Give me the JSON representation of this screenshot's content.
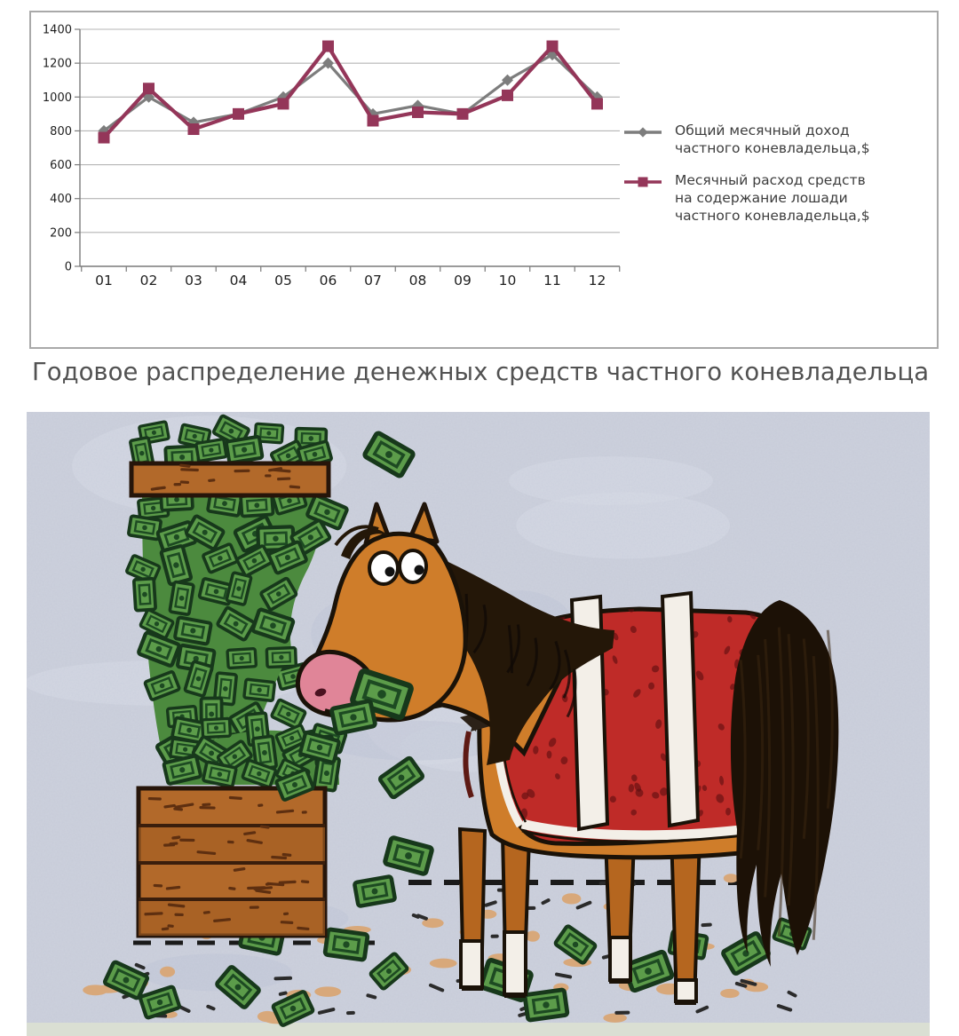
{
  "caption": "Годовое распределение денежных средств частного коневладельца",
  "chart_data": {
    "type": "line",
    "title": "",
    "categories": [
      "01",
      "02",
      "03",
      "04",
      "05",
      "06",
      "07",
      "08",
      "09",
      "10",
      "11",
      "12"
    ],
    "series": [
      {
        "name": "Общий месячный доход частного коневладельца,$",
        "color": "#7d7d7d",
        "marker": "diamond",
        "values": [
          800,
          1000,
          850,
          900,
          1000,
          1200,
          900,
          950,
          900,
          1100,
          1250,
          1000
        ]
      },
      {
        "name": "Месячный расход средств на содержание лошади частного коневладельца,$",
        "color": "#943659",
        "marker": "square",
        "values": [
          760,
          1050,
          810,
          900,
          960,
          1300,
          860,
          910,
          900,
          1010,
          1300,
          960
        ]
      }
    ],
    "ylim": [
      0,
      1400
    ],
    "ytick_step": 200,
    "y_tick_labels": [
      "0",
      "200",
      "400",
      "600",
      "800",
      "1000",
      "1200",
      "1400"
    ],
    "grid": true,
    "legend_position": "right",
    "xlabel": "",
    "ylabel": ""
  },
  "chart_style": {
    "border_color": "#a9a9a9",
    "grid_color": "#b5b5b5",
    "axis_color": "#7a7a7a",
    "label_color": "#1f1f1f",
    "legend_text_color": "#3d3d3d",
    "background": "#ffffff"
  },
  "cartoon": {
    "background_color": "#cdd1dd",
    "money_green": "#5c9c4a",
    "money_outline": "#17381b",
    "horse_coat": "#cf7d2a",
    "blanket_red": "#bf2b28",
    "strap_white": "#f3efe8",
    "wood_brown": "#b2692a",
    "mane_black": "#241708",
    "muzzle_pink": "#e08598",
    "ground_dirt_tan": "#d8a87a"
  }
}
